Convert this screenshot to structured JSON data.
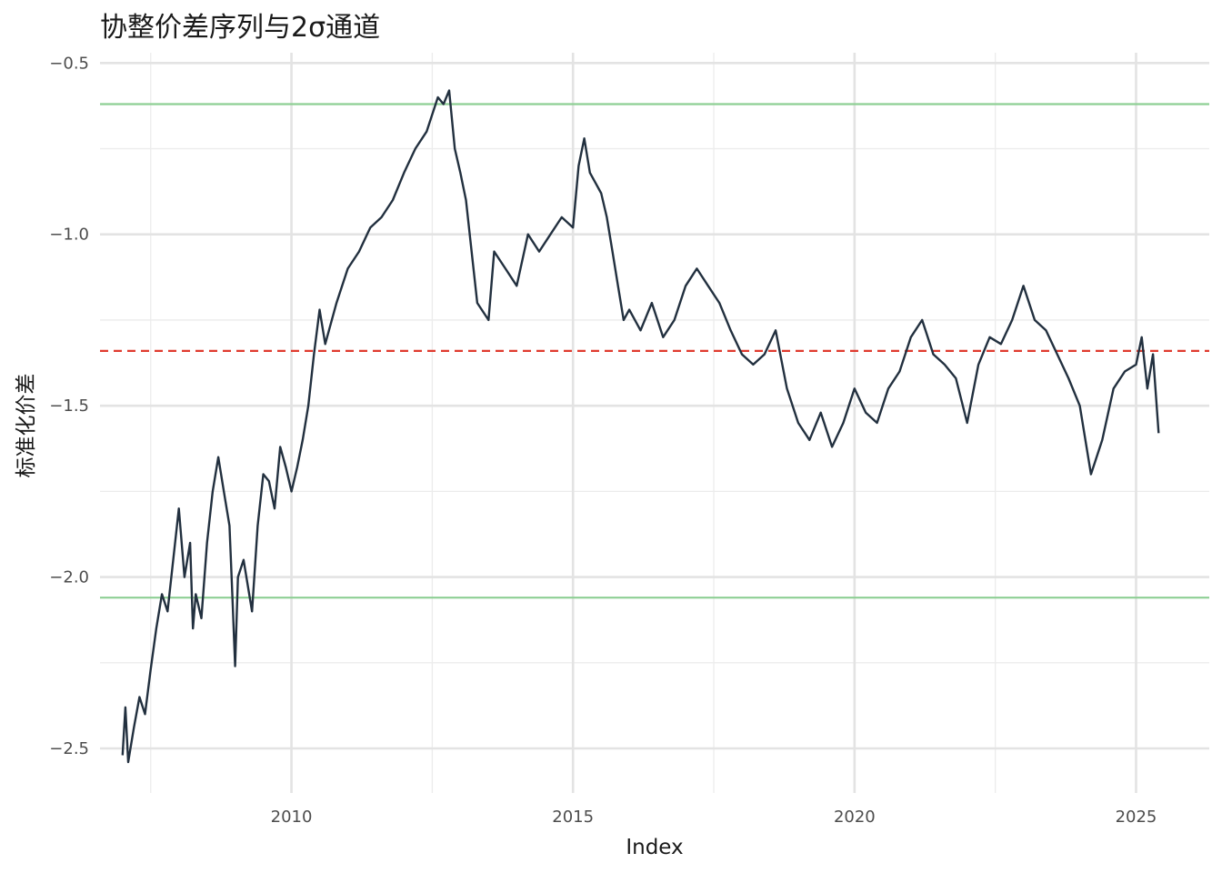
{
  "chart_data": {
    "type": "line",
    "title": "协整价差序列与2σ通道",
    "xlabel": "Index",
    "ylabel": "标准化价差",
    "xlim": [
      2006.6,
      2026.3
    ],
    "ylim": [
      -2.63,
      -0.47
    ],
    "x_ticks": [
      2010,
      2015,
      2020,
      2025
    ],
    "x_tick_labels": [
      "2010",
      "2015",
      "2020",
      "2025"
    ],
    "y_ticks": [
      -2.5,
      -2.0,
      -1.5,
      -1.0,
      -0.5
    ],
    "y_tick_labels": [
      "−2.5",
      "−2.0",
      "−1.5",
      "−1.0",
      "−0.5"
    ],
    "grid": true,
    "reference_lines": [
      {
        "y": -0.62,
        "style": "solid",
        "color": "#8ecf94"
      },
      {
        "y": -1.34,
        "style": "dashed",
        "color": "#e03b2f"
      },
      {
        "y": -2.06,
        "style": "solid",
        "color": "#8ecf94"
      }
    ],
    "series": [
      {
        "color": "#22303f",
        "x": [
          2007.0,
          2007.05,
          2007.1,
          2007.2,
          2007.3,
          2007.4,
          2007.5,
          2007.6,
          2007.7,
          2007.8,
          2007.9,
          2008.0,
          2008.1,
          2008.2,
          2008.25,
          2008.3,
          2008.4,
          2008.5,
          2008.6,
          2008.7,
          2008.8,
          2008.9,
          2008.95,
          2009.0,
          2009.05,
          2009.15,
          2009.3,
          2009.4,
          2009.5,
          2009.6,
          2009.7,
          2009.8,
          2009.9,
          2010.0,
          2010.1,
          2010.2,
          2010.3,
          2010.4,
          2010.5,
          2010.6,
          2010.8,
          2011.0,
          2011.2,
          2011.4,
          2011.6,
          2011.8,
          2012.0,
          2012.2,
          2012.4,
          2012.6,
          2012.7,
          2012.8,
          2012.9,
          2013.0,
          2013.1,
          2013.2,
          2013.3,
          2013.5,
          2013.6,
          2013.8,
          2014.0,
          2014.2,
          2014.4,
          2014.6,
          2014.8,
          2015.0,
          2015.1,
          2015.2,
          2015.3,
          2015.4,
          2015.5,
          2015.6,
          2015.7,
          2015.8,
          2015.9,
          2016.0,
          2016.2,
          2016.4,
          2016.6,
          2016.8,
          2017.0,
          2017.2,
          2017.4,
          2017.6,
          2017.8,
          2018.0,
          2018.2,
          2018.4,
          2018.6,
          2018.8,
          2019.0,
          2019.2,
          2019.4,
          2019.6,
          2019.8,
          2020.0,
          2020.2,
          2020.4,
          2020.6,
          2020.8,
          2021.0,
          2021.2,
          2021.4,
          2021.6,
          2021.8,
          2022.0,
          2022.2,
          2022.4,
          2022.6,
          2022.8,
          2023.0,
          2023.2,
          2023.4,
          2023.6,
          2023.8,
          2024.0,
          2024.2,
          2024.4,
          2024.6,
          2024.8,
          2025.0,
          2025.1,
          2025.2,
          2025.3,
          2025.4
        ],
        "values": [
          -2.52,
          -2.38,
          -2.54,
          -2.44,
          -2.35,
          -2.4,
          -2.27,
          -2.15,
          -2.05,
          -2.1,
          -1.95,
          -1.8,
          -2.0,
          -1.9,
          -2.15,
          -2.05,
          -2.12,
          -1.9,
          -1.75,
          -1.65,
          -1.75,
          -1.85,
          -2.05,
          -2.26,
          -2.0,
          -1.95,
          -2.1,
          -1.85,
          -1.7,
          -1.72,
          -1.8,
          -1.62,
          -1.68,
          -1.75,
          -1.68,
          -1.6,
          -1.5,
          -1.35,
          -1.22,
          -1.32,
          -1.2,
          -1.1,
          -1.05,
          -0.98,
          -0.95,
          -0.9,
          -0.82,
          -0.75,
          -0.7,
          -0.6,
          -0.62,
          -0.58,
          -0.75,
          -0.82,
          -0.9,
          -1.05,
          -1.2,
          -1.25,
          -1.05,
          -1.1,
          -1.15,
          -1.0,
          -1.05,
          -1.0,
          -0.95,
          -0.98,
          -0.8,
          -0.72,
          -0.82,
          -0.85,
          -0.88,
          -0.95,
          -1.05,
          -1.15,
          -1.25,
          -1.22,
          -1.28,
          -1.2,
          -1.3,
          -1.25,
          -1.15,
          -1.1,
          -1.15,
          -1.2,
          -1.28,
          -1.35,
          -1.38,
          -1.35,
          -1.28,
          -1.45,
          -1.55,
          -1.6,
          -1.52,
          -1.62,
          -1.55,
          -1.45,
          -1.52,
          -1.55,
          -1.45,
          -1.4,
          -1.3,
          -1.25,
          -1.35,
          -1.38,
          -1.42,
          -1.55,
          -1.38,
          -1.3,
          -1.32,
          -1.25,
          -1.15,
          -1.25,
          -1.28,
          -1.35,
          -1.42,
          -1.5,
          -1.7,
          -1.6,
          -1.45,
          -1.4,
          -1.38,
          -1.3,
          -1.45,
          -1.35,
          -1.58
        ]
      }
    ]
  }
}
